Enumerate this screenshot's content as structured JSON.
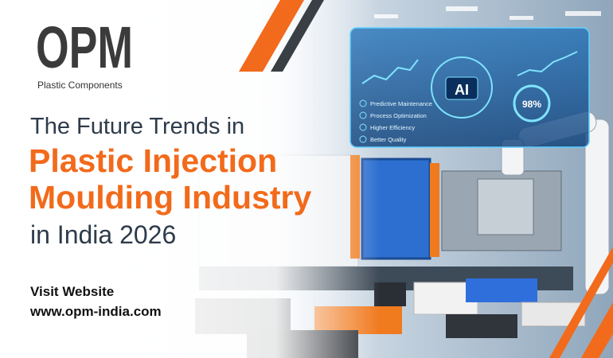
{
  "logo": {
    "mark": "OPM",
    "tagline": "Plastic Components"
  },
  "headline": {
    "lines": [
      "The Future Trends in",
      "Plastic Injection",
      "Moulding Industry",
      "in India 2026"
    ]
  },
  "cta": {
    "label": "Visit Website",
    "url": "www.opm-india.com"
  },
  "hologram": {
    "center": "AI",
    "features": [
      "Predictive Maintenance",
      "Process Optimization",
      "Higher Efficiency",
      "Better Quality"
    ],
    "gauge": "98%"
  }
}
